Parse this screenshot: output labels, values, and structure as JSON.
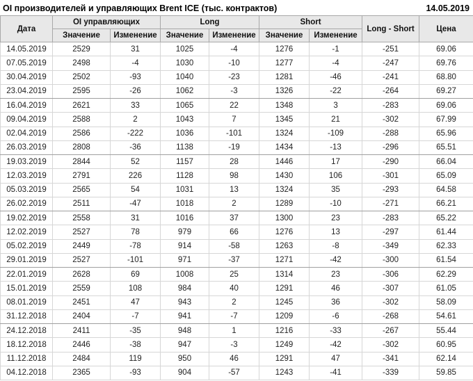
{
  "colors": {
    "positive": "#008000",
    "negative": "#c00000",
    "header_bg": "#e8e8e8"
  },
  "chart_data": {
    "type": "table",
    "title": "OI производителей и управляющих Brent ICE (тыс. контрактов)",
    "report_date": "14.05.2019",
    "column_groups": {
      "oi": "OI управляющих",
      "long": "Long",
      "short": "Short"
    },
    "columns": {
      "date": "Дата",
      "value": "Значение",
      "change": "Изменение",
      "long_short": "Long - Short",
      "price": "Цена"
    },
    "rows": [
      [
        "14.05.2019",
        "2529",
        "31",
        "1025",
        "-4",
        "1276",
        "-1",
        "-251",
        "69.06"
      ],
      [
        "07.05.2019",
        "2498",
        "-4",
        "1030",
        "-10",
        "1277",
        "-4",
        "-247",
        "69.76"
      ],
      [
        "30.04.2019",
        "2502",
        "-93",
        "1040",
        "-23",
        "1281",
        "-46",
        "-241",
        "68.80"
      ],
      [
        "23.04.2019",
        "2595",
        "-26",
        "1062",
        "-3",
        "1326",
        "-22",
        "-264",
        "69.27"
      ],
      [
        "16.04.2019",
        "2621",
        "33",
        "1065",
        "22",
        "1348",
        "3",
        "-283",
        "69.06"
      ],
      [
        "09.04.2019",
        "2588",
        "2",
        "1043",
        "7",
        "1345",
        "21",
        "-302",
        "67.99"
      ],
      [
        "02.04.2019",
        "2586",
        "-222",
        "1036",
        "-101",
        "1324",
        "-109",
        "-288",
        "65.96"
      ],
      [
        "26.03.2019",
        "2808",
        "-36",
        "1138",
        "-19",
        "1434",
        "-13",
        "-296",
        "65.51"
      ],
      [
        "19.03.2019",
        "2844",
        "52",
        "1157",
        "28",
        "1446",
        "17",
        "-290",
        "66.04"
      ],
      [
        "12.03.2019",
        "2791",
        "226",
        "1128",
        "98",
        "1430",
        "106",
        "-301",
        "65.09"
      ],
      [
        "05.03.2019",
        "2565",
        "54",
        "1031",
        "13",
        "1324",
        "35",
        "-293",
        "64.58"
      ],
      [
        "26.02.2019",
        "2511",
        "-47",
        "1018",
        "2",
        "1289",
        "-10",
        "-271",
        "66.21"
      ],
      [
        "19.02.2019",
        "2558",
        "31",
        "1016",
        "37",
        "1300",
        "23",
        "-283",
        "65.22"
      ],
      [
        "12.02.2019",
        "2527",
        "78",
        "979",
        "66",
        "1276",
        "13",
        "-297",
        "61.44"
      ],
      [
        "05.02.2019",
        "2449",
        "-78",
        "914",
        "-58",
        "1263",
        "-8",
        "-349",
        "62.33"
      ],
      [
        "29.01.2019",
        "2527",
        "-101",
        "971",
        "-37",
        "1271",
        "-42",
        "-300",
        "61.54"
      ],
      [
        "22.01.2019",
        "2628",
        "69",
        "1008",
        "25",
        "1314",
        "23",
        "-306",
        "62.29"
      ],
      [
        "15.01.2019",
        "2559",
        "108",
        "984",
        "40",
        "1291",
        "46",
        "-307",
        "61.05"
      ],
      [
        "08.01.2019",
        "2451",
        "47",
        "943",
        "2",
        "1245",
        "36",
        "-302",
        "58.09"
      ],
      [
        "31.12.2018",
        "2404",
        "-7",
        "941",
        "-7",
        "1209",
        "-6",
        "-268",
        "54.61"
      ],
      [
        "24.12.2018",
        "2411",
        "-35",
        "948",
        "1",
        "1216",
        "-33",
        "-267",
        "55.44"
      ],
      [
        "18.12.2018",
        "2446",
        "-38",
        "947",
        "-3",
        "1249",
        "-42",
        "-302",
        "60.95"
      ],
      [
        "11.12.2018",
        "2484",
        "119",
        "950",
        "46",
        "1291",
        "47",
        "-341",
        "62.14"
      ],
      [
        "04.12.2018",
        "2365",
        "-93",
        "904",
        "-57",
        "1243",
        "-41",
        "-339",
        "59.85"
      ]
    ]
  }
}
